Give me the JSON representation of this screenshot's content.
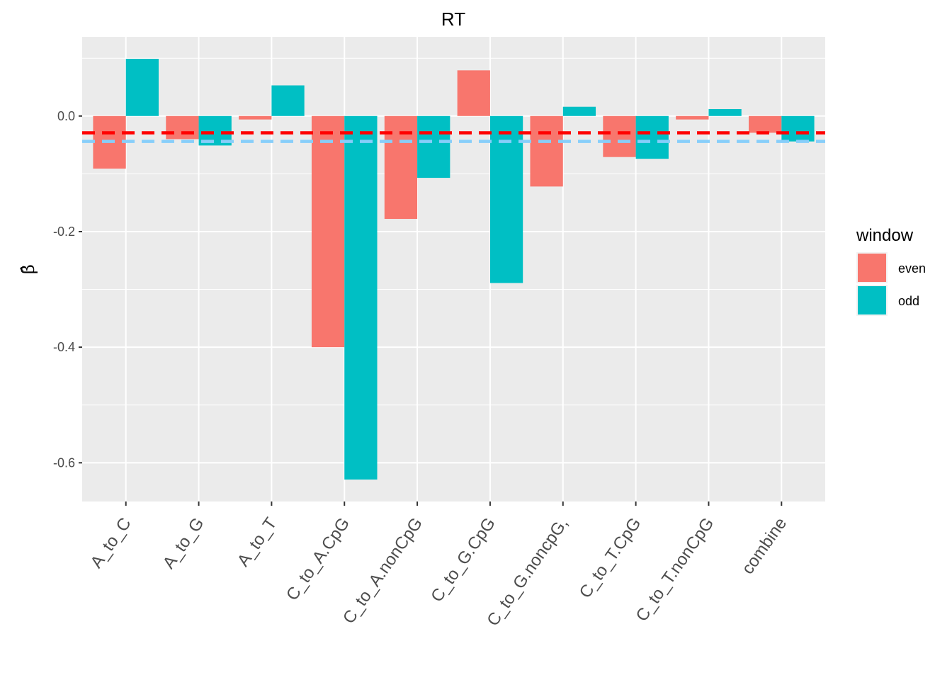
{
  "chart_data": {
    "type": "bar",
    "title": "RT",
    "xlabel": "",
    "ylabel": "β̂",
    "ylim": [
      -0.667,
      0.137
    ],
    "y_ticks": [
      0.0,
      -0.2,
      -0.4,
      -0.6
    ],
    "y_tick_labels": [
      "0.0",
      "-0.2",
      "-0.4",
      "-0.6"
    ],
    "categories": [
      "A_to_C",
      "A_to_G",
      "A_to_T",
      "C_to_A.CpG",
      "C_to_A.nonCpG",
      "C_to_G.CpG",
      "C_to_G.noncpG,",
      "C_to_T.CpG",
      "C_to_T.nonCpG",
      "combine"
    ],
    "series": [
      {
        "name": "even",
        "color": "#F8766D",
        "values": [
          -0.091,
          -0.04,
          -0.006,
          -0.4,
          -0.178,
          0.079,
          -0.122,
          -0.071,
          -0.006,
          -0.029
        ]
      },
      {
        "name": "odd",
        "color": "#00BFC4",
        "values": [
          0.099,
          -0.051,
          0.053,
          -0.629,
          -0.107,
          -0.289,
          0.016,
          -0.074,
          0.012,
          -0.044
        ]
      }
    ],
    "reference_lines": [
      {
        "value": -0.029,
        "color": "#FF0000",
        "style": "dashed"
      },
      {
        "value": -0.044,
        "color": "#87CEFA",
        "style": "dashed"
      }
    ],
    "legend": {
      "title": "window",
      "placement": "right"
    },
    "grid": true,
    "panel_background": "#EBEBEB"
  }
}
